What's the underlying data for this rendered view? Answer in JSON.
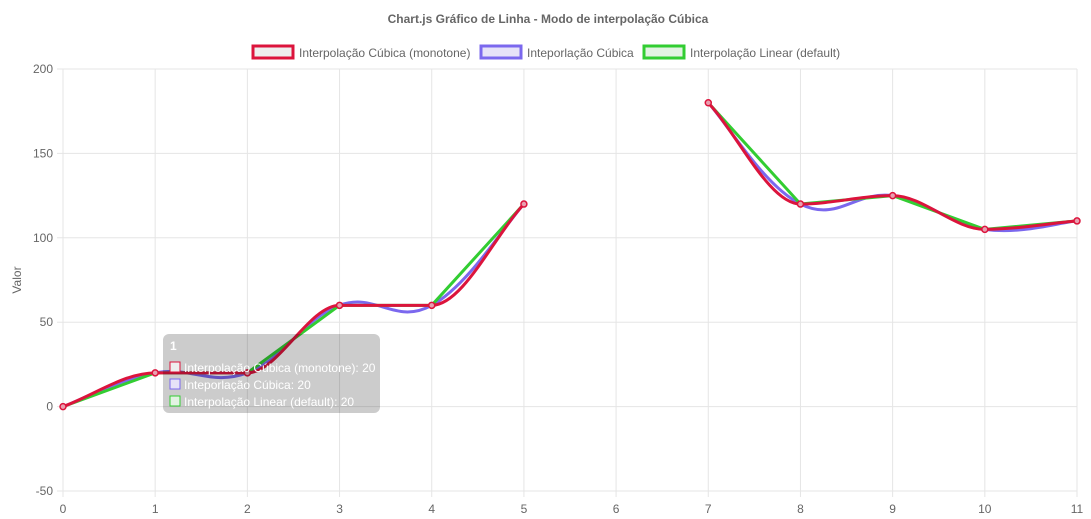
{
  "chart_data": {
    "type": "line",
    "title": "Chart.js Gráfico de Linha - Modo de interpolação Cúbica",
    "ylabel": "Valor",
    "xlabel": "",
    "x": [
      "0",
      "1",
      "2",
      "3",
      "4",
      "5",
      "6",
      "7",
      "8",
      "9",
      "10",
      "11"
    ],
    "ylim": [
      -50,
      200
    ],
    "yticks": [
      -50,
      0,
      50,
      100,
      150,
      200
    ],
    "grid": true,
    "legend_position": "top",
    "series": [
      {
        "name": "Interpolação Cúbica (monotone)",
        "interpolation": "monotone",
        "color": "#dc143c",
        "fill": "#eeeeee",
        "values": [
          0,
          20,
          20,
          60,
          60,
          120,
          null,
          180,
          120,
          125,
          105,
          110
        ]
      },
      {
        "name": "Inteporlação Cúbica",
        "interpolation": "cubic",
        "color": "#7b68ee",
        "fill": "#e6e2f8",
        "values": [
          0,
          20,
          20,
          60,
          60,
          120,
          null,
          180,
          120,
          125,
          105,
          110
        ]
      },
      {
        "name": "Interpolação Linear (default)",
        "interpolation": "linear",
        "color": "#32cd32",
        "fill": "#e2f3e2",
        "values": [
          0,
          20,
          20,
          60,
          60,
          120,
          null,
          180,
          120,
          125,
          105,
          110
        ]
      }
    ],
    "tooltip": {
      "title": "1",
      "entries": [
        "Interpolação Cúbica (monotone): 20",
        "Inteporlação Cúbica: 20",
        "Interpolação Linear (default): 20"
      ]
    }
  }
}
